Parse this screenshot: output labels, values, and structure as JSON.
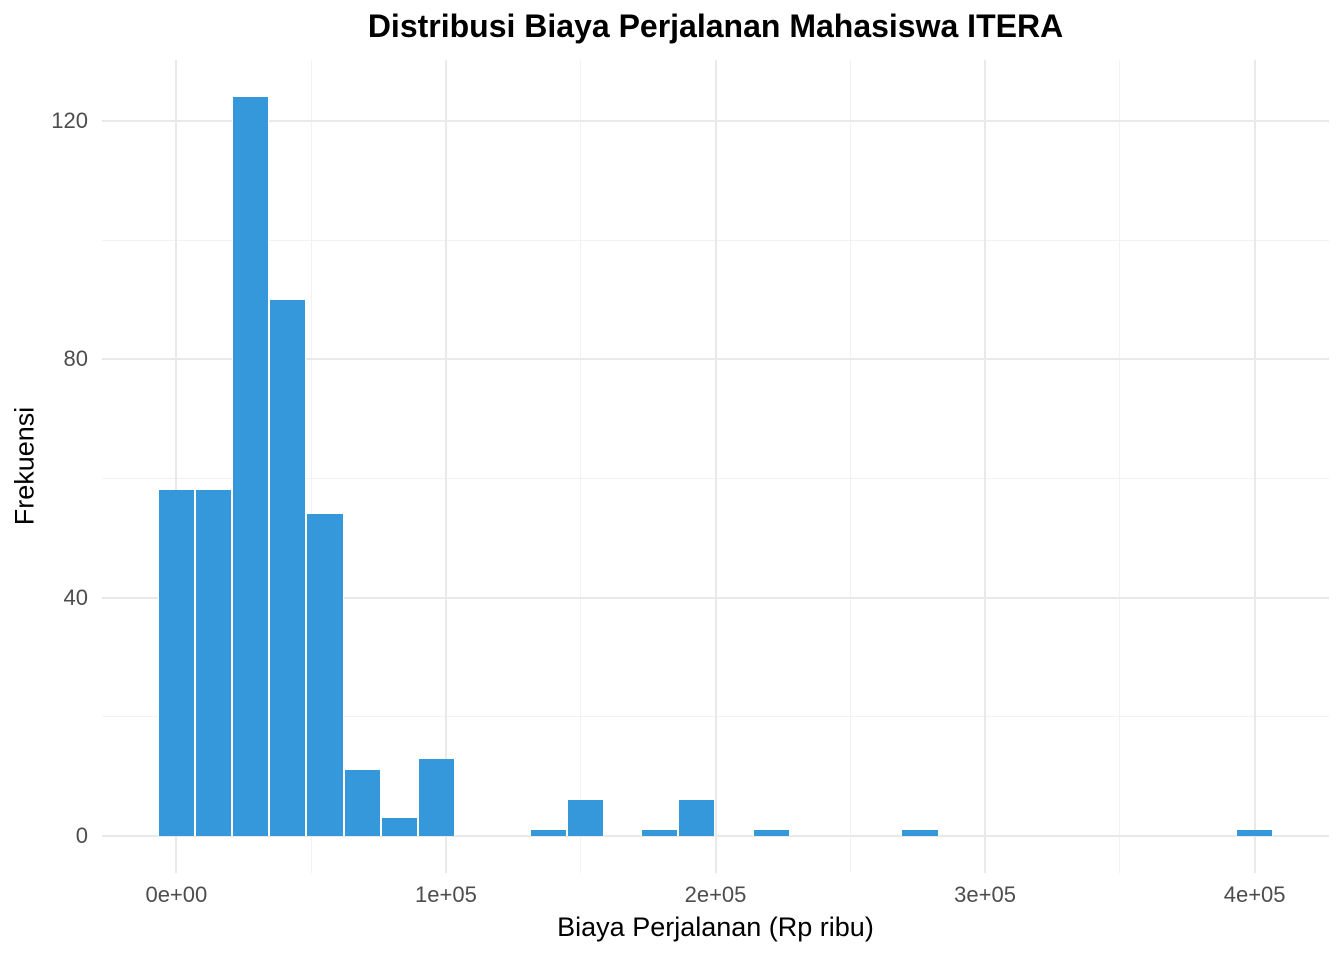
{
  "chart_data": {
    "type": "bar",
    "subtype": "histogram",
    "title": "Distribusi Biaya Perjalanan Mahasiswa ITERA",
    "xlabel": "Biaya Perjalanan (Rp ribu)",
    "ylabel": "Frekuensi",
    "legend_position": "none",
    "grid": true,
    "binwidth": 13793.1,
    "bin_centers_rule": "bin n is centered at n * binwidth, n = 0..29",
    "counts": [
      58,
      58,
      124,
      90,
      54,
      11,
      3,
      13,
      0,
      0,
      1,
      6,
      0,
      1,
      6,
      0,
      1,
      0,
      0,
      0,
      1,
      0,
      0,
      0,
      0,
      0,
      0,
      0,
      0,
      1
    ],
    "x_ticks": {
      "values": [
        0,
        100000,
        200000,
        300000,
        400000
      ],
      "labels": [
        "0e+00",
        "1e+05",
        "2e+05",
        "3e+05",
        "4e+05"
      ]
    },
    "x_minor_ticks": [
      50000,
      150000,
      250000,
      350000
    ],
    "y_ticks": {
      "values": [
        0,
        40,
        80,
        120
      ],
      "labels": [
        "0",
        "40",
        "80",
        "120"
      ]
    },
    "y_minor_ticks": [
      20,
      60,
      100
    ],
    "xlim": [
      -27586,
      427586
    ],
    "ylim": [
      -6.2,
      130.2
    ],
    "colors": {
      "bar_fill": "#3498db",
      "bar_edge": "#ffffff",
      "grid_major": "#e9e9e9",
      "grid_minor": "#f2f2f2",
      "tick_label": "#4d4d4d",
      "axis_title": "#000000",
      "title": "#000000",
      "background": "#ffffff"
    }
  }
}
